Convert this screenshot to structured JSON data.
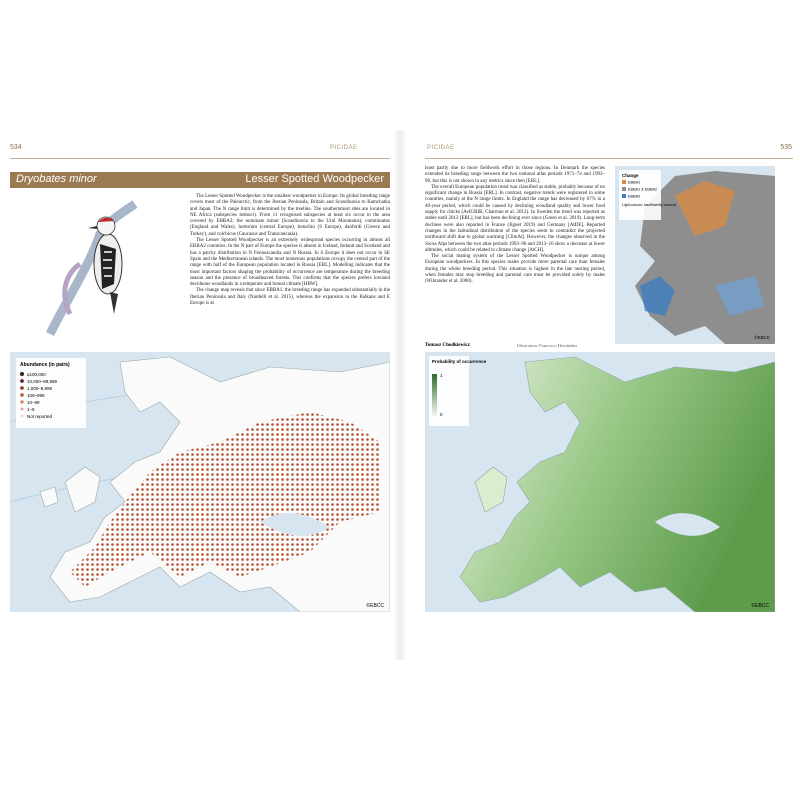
{
  "left_page": {
    "number": "534",
    "running_head": "PICIDAE",
    "title_latin": "Dryobates minor",
    "title_common": "Lesser Spotted Woodpecker",
    "paragraphs": [
      "The Lesser Spotted Woodpecker is the smallest woodpecker in Europe. Its global breeding range covers most of the Palearctic, from the Iberian Peninsula, Britain and Scandinavia to Kamchatka and Japan. The N range limit is determined by the treeline. The southernmost sites are located in NE Africa (subspecies ledouci). From 11 recognised subspecies at least six occur in the area covered by EBBA2; the nominate minor (Scandinavia to the Ural Mountains), comminutus (England and Wales), hortorum (central Europe), buturlini (S Europe), danfordi (Greece and Turkey), and colchicus (Caucasus and Transcaucasia).",
      "The Lesser Spotted Woodpecker is an extremely widespread species occurring in almost all EBBA2 countries. In the N part of Europe the species is absent in Iceland, Ireland and Scotland and has a patchy distribution in N Fennoscandia and N Russia. In S Europe it does not occur in SE Spain and the Mediterranean islands. The most numerous populations occupy the central part of the range with half of the European population located in Russia [ERL]. Modelling indicates that the most important factors shaping the probability of occurrence are temperature during the breeding season and the presence of broadleaved forests. This confirms that the species prefers lowland deciduous woodlands in a temperate and boreal climate [HBW].",
      "The change map reveals that since EBBA1, the breeding range has expanded substantially in the Iberian Peninsula and Italy (Nardelli et al. 2015), whereas the expansion in the Balkans and E Europe is at"
    ],
    "map": {
      "legend_title": "Abundance (in pairs)",
      "legend_items": [
        "≥100,000",
        "10,000–99,999",
        "1,000–9,999",
        "100–999",
        "10–99",
        "1–9",
        "Not reported"
      ],
      "credit": "©EBCC"
    }
  },
  "right_page": {
    "number": "535",
    "running_head": "PICIDAE",
    "paragraphs": [
      "least partly due to more fieldwork effort in those regions. In Denmark the species extended its breeding range between the two national atlas periods 1971–74 and 1993–96, but this is not shown in any metrics since then [ERL].",
      "The overall European population trend was classified as stable, probably because of no significant change in Russia [ERL]. In contrast, negative trends were registered in some countries, mainly at the N range limits. In England the range has decreased by 67% in a 40-year period, which could be caused by declining woodland quality and lower food supply for chicks (AvIGRIB, Charman et al. 2012). In Sweden the trend was reported as stable until 2012 [ERL], but has been declining ever since (Green et al. 2019). Long-term declines were also reported in France (Jiguet 2019) and Germany [AtDE]. Reported changes in the latitudinal distribution of the species seem to contradict the projected northward shift due to global warming [ClimAt]. However, the changes observed in the Swiss Alps between the two atlas periods 1993–96 and 2013–16 show a decrease at lower altitudes, which could be related to climate change [AtCH].",
      "The social mating system of the Lesser Spotted Woodpecker is unique among European woodpeckers. In this species males provide more parental care than females during the whole breeding period. This situation is highest in the late nesting period, when females may stop breeding and parental care must be provided solely by males (Wiktander et al. 2000)."
    ],
    "author": "Tomasz Chodkiewicz",
    "illustration_credit": "Illustration: Francisco Hernández",
    "change_map": {
      "legend_title": "Change",
      "legend_items": [
        "EBBA1",
        "EBBA1 & EBBA2",
        "EBBA2"
      ],
      "note": "Light colours: insufficiently covered",
      "credit": "©EBCC"
    },
    "map": {
      "legend_title": "Probability of occurrence",
      "legend_items": [
        "1",
        "0"
      ],
      "credit": "©EBCC"
    }
  }
}
